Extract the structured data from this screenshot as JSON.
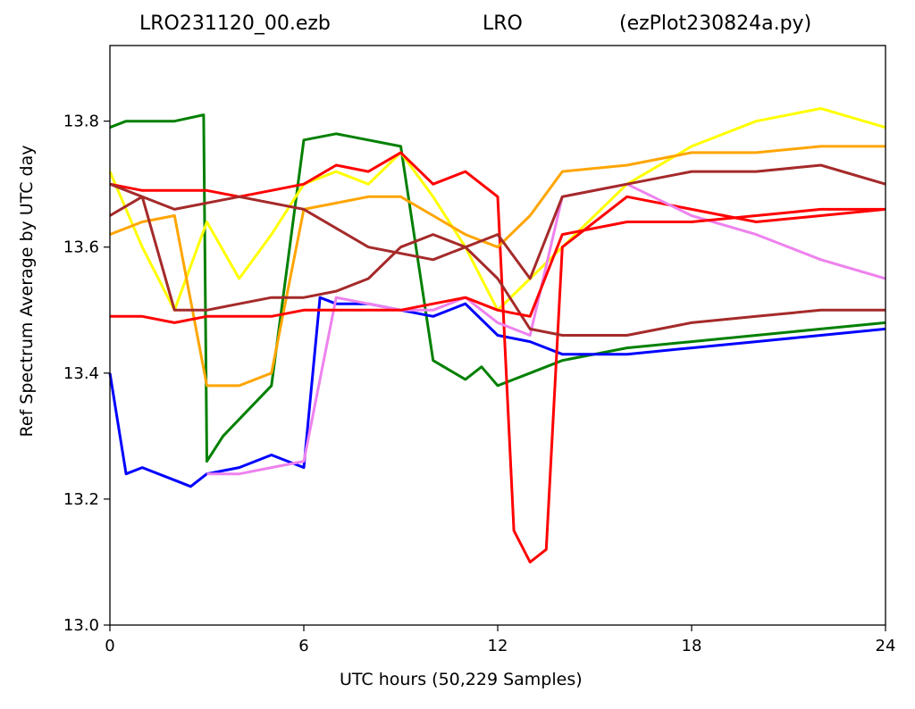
{
  "title": {
    "left": "LRO231120_00.ezb",
    "center": "LRO",
    "right": "(ezPlot230824a.py)"
  },
  "chart_data": {
    "type": "line",
    "title": "LRO231120_00.ezb LRO (ezPlot230824a.py)",
    "xlabel": "UTC hours  (50,229 Samples)",
    "ylabel": "Ref Spectrum Average by UTC day",
    "xlim": [
      0,
      24
    ],
    "ylim": [
      13.0,
      13.92
    ],
    "xticks": [
      "0",
      "6",
      "12",
      "18",
      "24"
    ],
    "yticks": [
      "13.0",
      "13.2",
      "13.4",
      "13.6",
      "13.8"
    ],
    "grid": false,
    "legend": "none",
    "colors": [
      "#008000",
      "#0000ff",
      "#ffff00",
      "#ff0000",
      "#ee82ee",
      "#ffa500",
      "#a52a2a"
    ],
    "series": [
      {
        "color": "#008000",
        "x": [
          0,
          0.5,
          1,
          2,
          2.9,
          3.0,
          3.5,
          5,
          6,
          7,
          8,
          9,
          10,
          11,
          11.5,
          12,
          13,
          14,
          16,
          18,
          20,
          22,
          24
        ],
        "y": [
          13.79,
          13.8,
          13.8,
          13.8,
          13.81,
          13.26,
          13.3,
          13.38,
          13.77,
          13.78,
          13.77,
          13.76,
          13.42,
          13.39,
          13.41,
          13.38,
          13.4,
          13.42,
          13.44,
          13.45,
          13.46,
          13.47,
          13.48
        ]
      },
      {
        "color": "#0000ff",
        "x": [
          0,
          0.5,
          1,
          2,
          2.5,
          3,
          4,
          5,
          6,
          6.5,
          7,
          8,
          9,
          10,
          11,
          12,
          13,
          14,
          16,
          18,
          20,
          22,
          24
        ],
        "y": [
          13.4,
          13.24,
          13.25,
          13.23,
          13.22,
          13.24,
          13.25,
          13.27,
          13.25,
          13.52,
          13.51,
          13.51,
          13.5,
          13.49,
          13.51,
          13.46,
          13.45,
          13.43,
          13.43,
          13.44,
          13.45,
          13.46,
          13.47
        ]
      },
      {
        "color": "#ffff00",
        "x": [
          0,
          1,
          2,
          3,
          4,
          5,
          6,
          7,
          8,
          9,
          10,
          11,
          12,
          13,
          14,
          16,
          18,
          20,
          22,
          24
        ],
        "y": [
          13.72,
          13.6,
          13.5,
          13.64,
          13.55,
          13.62,
          13.7,
          13.72,
          13.7,
          13.75,
          13.68,
          13.6,
          13.5,
          13.55,
          13.6,
          13.7,
          13.76,
          13.8,
          13.82,
          13.79
        ]
      },
      {
        "color": "#ff0000",
        "x": [
          0,
          1,
          2,
          3,
          4,
          5,
          6,
          7,
          8,
          9,
          10,
          11,
          12,
          12.5,
          13,
          13.5,
          14,
          16,
          18,
          20,
          22,
          24
        ],
        "y": [
          13.7,
          13.69,
          13.69,
          13.69,
          13.68,
          13.69,
          13.7,
          13.73,
          13.72,
          13.75,
          13.7,
          13.72,
          13.68,
          13.15,
          13.1,
          13.12,
          13.6,
          13.68,
          13.66,
          13.64,
          13.65,
          13.66
        ]
      },
      {
        "color": "#ee82ee",
        "x": [
          3,
          4,
          5,
          6,
          7,
          8,
          9,
          10,
          11,
          12,
          13,
          14,
          16,
          18,
          20,
          22,
          24
        ],
        "y": [
          13.24,
          13.24,
          13.25,
          13.26,
          13.52,
          13.51,
          13.5,
          13.5,
          13.52,
          13.48,
          13.46,
          13.68,
          13.7,
          13.65,
          13.62,
          13.58,
          13.55
        ]
      },
      {
        "color": "#ffa500",
        "x": [
          0,
          1,
          2,
          3,
          4,
          5,
          6,
          7,
          8,
          9,
          10,
          11,
          12,
          13,
          14,
          16,
          18,
          20,
          22,
          24
        ],
        "y": [
          13.62,
          13.64,
          13.65,
          13.38,
          13.38,
          13.4,
          13.66,
          13.67,
          13.68,
          13.68,
          13.65,
          13.62,
          13.6,
          13.65,
          13.72,
          13.73,
          13.75,
          13.75,
          13.76,
          13.76
        ]
      },
      {
        "color": "#a52a2a",
        "x": [
          0,
          1,
          2,
          3,
          4,
          5,
          6,
          7,
          8,
          9,
          10,
          11,
          12,
          13,
          14,
          16,
          18,
          20,
          22,
          24
        ],
        "y": [
          13.65,
          13.68,
          13.5,
          13.5,
          13.51,
          13.52,
          13.52,
          13.53,
          13.55,
          13.6,
          13.62,
          13.6,
          13.55,
          13.47,
          13.46,
          13.46,
          13.48,
          13.49,
          13.5,
          13.5
        ]
      },
      {
        "color": "#ff0000",
        "x": [
          0,
          1,
          2,
          3,
          4,
          5,
          6,
          7,
          8,
          9,
          10,
          11,
          12,
          13,
          14,
          16,
          18,
          20,
          22,
          24
        ],
        "y": [
          13.49,
          13.49,
          13.48,
          13.49,
          13.49,
          13.49,
          13.5,
          13.5,
          13.5,
          13.5,
          13.51,
          13.52,
          13.5,
          13.49,
          13.62,
          13.64,
          13.64,
          13.65,
          13.66,
          13.66
        ]
      },
      {
        "color": "#a52a2a",
        "x": [
          0,
          2,
          4,
          6,
          8,
          10,
          12,
          13,
          14,
          16,
          18,
          20,
          22,
          24
        ],
        "y": [
          13.7,
          13.66,
          13.68,
          13.66,
          13.6,
          13.58,
          13.62,
          13.55,
          13.68,
          13.7,
          13.72,
          13.72,
          13.73,
          13.7
        ]
      }
    ]
  }
}
